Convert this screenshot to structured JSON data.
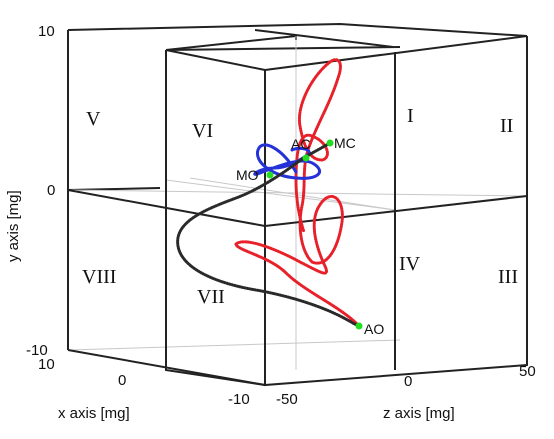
{
  "chart_data": {
    "type": "line",
    "projection": "3d",
    "xlabel": "x axis [mg]",
    "ylabel": "y axis [mg]",
    "zlabel": "z axis [mg]",
    "x_ticks": [
      "10",
      "0",
      "-10"
    ],
    "y_ticks": [
      "10",
      "0",
      "-10"
    ],
    "z_ticks": [
      "-50",
      "0",
      "50"
    ],
    "xlim": [
      -10,
      10
    ],
    "ylim": [
      -10,
      10
    ],
    "zlim": [
      -50,
      50
    ],
    "grid": true,
    "octant_labels": [
      "I",
      "II",
      "III",
      "IV",
      "V",
      "VI",
      "VII",
      "VIII"
    ],
    "series": [
      {
        "color": "#e8202a"
      },
      {
        "color": "#2432d8"
      },
      {
        "color": "#2a2a2a"
      }
    ],
    "events": [
      {
        "name": "AC",
        "color": "#22dd22"
      },
      {
        "name": "MC",
        "color": "#22dd22"
      },
      {
        "name": "MO",
        "color": "#22dd22"
      },
      {
        "name": "AO",
        "color": "#22dd22"
      }
    ]
  }
}
